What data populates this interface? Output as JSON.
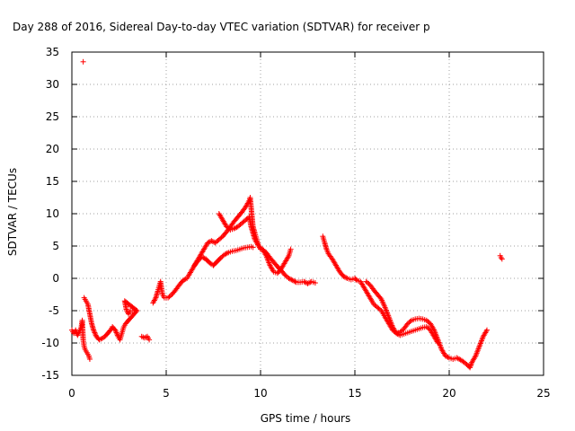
{
  "chart_data": {
    "type": "scatter",
    "title": "Day 288 of 2016, Sidereal Day-to-day VTEC variation (SDTVAR) for receiver p",
    "xlabel": "GPS time / hours",
    "ylabel": "SDTVAR / TECUs",
    "xlim": [
      0,
      25
    ],
    "ylim": [
      -15,
      35
    ],
    "xticks": [
      "0",
      "5",
      "10",
      "15",
      "20",
      "25"
    ],
    "yticks": [
      "35",
      "30",
      "25",
      "20",
      "15",
      "10",
      "5",
      "0",
      "-5",
      "-10",
      "-15"
    ],
    "grid": true,
    "marker": "+",
    "color": "#ff0000",
    "series": [
      {
        "points": [
          [
            0.0,
            -8.0
          ],
          [
            0.1,
            -8.5
          ],
          [
            0.2,
            -8.0
          ],
          [
            0.3,
            -8.8
          ],
          [
            0.4,
            -8.2
          ],
          [
            0.5,
            -7.5
          ],
          [
            0.55,
            -6.5
          ],
          [
            0.6,
            -9.5
          ],
          [
            0.65,
            -10.5
          ],
          [
            0.7,
            -11.0
          ],
          [
            0.8,
            -11.5
          ],
          [
            0.9,
            -12.0
          ],
          [
            0.95,
            -12.5
          ],
          [
            0.6,
            33.5
          ],
          [
            0.65,
            -3.0
          ],
          [
            0.75,
            -3.5
          ],
          [
            0.85,
            -4.0
          ],
          [
            0.95,
            -5.5
          ],
          [
            1.05,
            -7.0
          ],
          [
            1.15,
            -8.0
          ],
          [
            1.3,
            -9.0
          ],
          [
            1.45,
            -9.5
          ],
          [
            1.6,
            -9.3
          ],
          [
            1.75,
            -9.0
          ],
          [
            1.9,
            -8.5
          ],
          [
            2.05,
            -8.0
          ],
          [
            2.15,
            -7.5
          ],
          [
            2.3,
            -8.0
          ],
          [
            2.45,
            -9.0
          ],
          [
            2.55,
            -9.5
          ],
          [
            2.65,
            -8.5
          ],
          [
            2.75,
            -7.5
          ],
          [
            2.85,
            -7.0
          ],
          [
            3.0,
            -6.5
          ],
          [
            3.15,
            -6.0
          ],
          [
            3.3,
            -5.5
          ],
          [
            3.45,
            -5.0
          ],
          [
            2.8,
            -3.5
          ],
          [
            2.9,
            -5.0
          ],
          [
            3.0,
            -5.5
          ],
          [
            3.1,
            -5.0
          ],
          [
            3.3,
            -5.0
          ],
          [
            3.7,
            -9.0
          ],
          [
            3.85,
            -9.2
          ],
          [
            4.0,
            -9.0
          ],
          [
            4.1,
            -9.5
          ],
          [
            4.3,
            -3.8
          ],
          [
            4.45,
            -3.0
          ],
          [
            4.55,
            -2.0
          ],
          [
            4.65,
            -1.0
          ],
          [
            4.7,
            -0.5
          ],
          [
            4.8,
            -2.5
          ],
          [
            4.9,
            -3.0
          ],
          [
            5.1,
            -3.0
          ],
          [
            5.3,
            -2.5
          ],
          [
            5.5,
            -1.8
          ],
          [
            5.7,
            -1.0
          ],
          [
            5.9,
            -0.3
          ],
          [
            6.1,
            0.0
          ],
          [
            6.2,
            0.5
          ],
          [
            6.4,
            1.5
          ],
          [
            6.6,
            2.5
          ],
          [
            6.8,
            3.5
          ],
          [
            7.0,
            4.5
          ],
          [
            7.2,
            5.5
          ],
          [
            7.4,
            5.8
          ],
          [
            7.6,
            5.5
          ],
          [
            7.8,
            6.0
          ],
          [
            8.0,
            6.5
          ],
          [
            8.2,
            7.2
          ],
          [
            8.4,
            8.0
          ],
          [
            8.6,
            8.8
          ],
          [
            8.8,
            9.5
          ],
          [
            9.0,
            10.2
          ],
          [
            9.2,
            11.0
          ],
          [
            9.4,
            12.0
          ],
          [
            9.45,
            12.5
          ],
          [
            9.5,
            11.0
          ],
          [
            9.55,
            9.5
          ],
          [
            9.6,
            8.0
          ],
          [
            9.7,
            7.0
          ],
          [
            9.8,
            6.0
          ],
          [
            9.9,
            5.0
          ],
          [
            10.0,
            4.5
          ],
          [
            10.1,
            4.5
          ],
          [
            10.3,
            4.0
          ],
          [
            10.5,
            3.2
          ],
          [
            10.7,
            2.5
          ],
          [
            10.9,
            1.8
          ],
          [
            11.1,
            1.2
          ],
          [
            11.3,
            0.5
          ],
          [
            11.5,
            0.0
          ],
          [
            11.7,
            -0.3
          ],
          [
            11.9,
            -0.6
          ],
          [
            12.1,
            -0.6
          ],
          [
            12.3,
            -0.5
          ],
          [
            12.5,
            -0.8
          ],
          [
            12.7,
            -0.5
          ],
          [
            12.9,
            -0.7
          ],
          [
            6.5,
            2.0
          ],
          [
            6.7,
            2.8
          ],
          [
            6.9,
            3.3
          ],
          [
            7.1,
            3.0
          ],
          [
            7.3,
            2.4
          ],
          [
            7.5,
            2.0
          ],
          [
            7.7,
            2.6
          ],
          [
            7.9,
            3.2
          ],
          [
            8.1,
            3.7
          ],
          [
            8.3,
            4.0
          ],
          [
            8.5,
            4.2
          ],
          [
            8.7,
            4.3
          ],
          [
            8.9,
            4.5
          ],
          [
            9.1,
            4.7
          ],
          [
            9.3,
            4.8
          ],
          [
            9.5,
            4.9
          ],
          [
            9.6,
            4.8
          ],
          [
            7.8,
            10.0
          ],
          [
            8.0,
            9.0
          ],
          [
            8.2,
            8.0
          ],
          [
            8.4,
            7.5
          ],
          [
            8.6,
            7.7
          ],
          [
            8.8,
            8.0
          ],
          [
            9.0,
            8.5
          ],
          [
            9.2,
            9.0
          ],
          [
            9.4,
            9.5
          ],
          [
            9.5,
            8.0
          ],
          [
            9.7,
            6.0
          ],
          [
            9.9,
            5.0
          ],
          [
            10.1,
            4.5
          ],
          [
            10.3,
            3.5
          ],
          [
            10.5,
            2.0
          ],
          [
            10.7,
            1.0
          ],
          [
            10.9,
            0.8
          ],
          [
            11.1,
            1.5
          ],
          [
            11.3,
            2.5
          ],
          [
            11.5,
            3.5
          ],
          [
            11.6,
            4.5
          ],
          [
            13.3,
            6.5
          ],
          [
            13.4,
            5.5
          ],
          [
            13.5,
            4.5
          ],
          [
            13.6,
            3.8
          ],
          [
            13.8,
            3.0
          ],
          [
            14.0,
            2.0
          ],
          [
            14.2,
            1.0
          ],
          [
            14.4,
            0.3
          ],
          [
            14.6,
            0.0
          ],
          [
            14.8,
            -0.2
          ],
          [
            15.0,
            0.0
          ],
          [
            15.1,
            -0.3
          ],
          [
            15.3,
            -0.5
          ],
          [
            15.5,
            -1.5
          ],
          [
            15.7,
            -2.5
          ],
          [
            15.9,
            -3.5
          ],
          [
            16.0,
            -4.0
          ],
          [
            16.2,
            -4.5
          ],
          [
            16.4,
            -5.0
          ],
          [
            16.5,
            -5.5
          ],
          [
            16.6,
            -6.0
          ],
          [
            16.8,
            -7.0
          ],
          [
            17.0,
            -8.0
          ],
          [
            17.2,
            -8.5
          ],
          [
            17.4,
            -8.3
          ],
          [
            17.6,
            -7.8
          ],
          [
            17.8,
            -7.0
          ],
          [
            18.0,
            -6.5
          ],
          [
            18.2,
            -6.3
          ],
          [
            18.4,
            -6.2
          ],
          [
            18.6,
            -6.3
          ],
          [
            18.8,
            -6.5
          ],
          [
            19.0,
            -7.0
          ],
          [
            19.2,
            -8.0
          ],
          [
            19.4,
            -9.5
          ],
          [
            19.6,
            -11.0
          ],
          [
            19.8,
            -12.0
          ],
          [
            20.0,
            -12.3
          ],
          [
            20.2,
            -12.5
          ],
          [
            20.4,
            -12.3
          ],
          [
            20.6,
            -12.6
          ],
          [
            20.8,
            -13.0
          ],
          [
            21.0,
            -13.5
          ],
          [
            21.1,
            -13.8
          ],
          [
            21.2,
            -13.0
          ],
          [
            21.4,
            -12.0
          ],
          [
            21.6,
            -10.5
          ],
          [
            21.8,
            -9.0
          ],
          [
            22.0,
            -8.0
          ],
          [
            15.6,
            -0.5
          ],
          [
            15.8,
            -1.0
          ],
          [
            16.0,
            -1.8
          ],
          [
            16.2,
            -2.5
          ],
          [
            16.4,
            -3.2
          ],
          [
            16.6,
            -4.5
          ],
          [
            16.8,
            -6.0
          ],
          [
            17.0,
            -7.5
          ],
          [
            17.2,
            -8.5
          ],
          [
            17.4,
            -8.8
          ],
          [
            17.6,
            -8.6
          ],
          [
            17.8,
            -8.4
          ],
          [
            18.0,
            -8.2
          ],
          [
            18.2,
            -8.0
          ],
          [
            18.4,
            -7.8
          ],
          [
            18.6,
            -7.6
          ],
          [
            18.8,
            -7.5
          ],
          [
            19.0,
            -8.0
          ],
          [
            19.2,
            -9.0
          ],
          [
            19.4,
            -10.0
          ],
          [
            22.7,
            3.5
          ],
          [
            22.75,
            3.2
          ],
          [
            22.8,
            3.0
          ]
        ]
      }
    ]
  }
}
